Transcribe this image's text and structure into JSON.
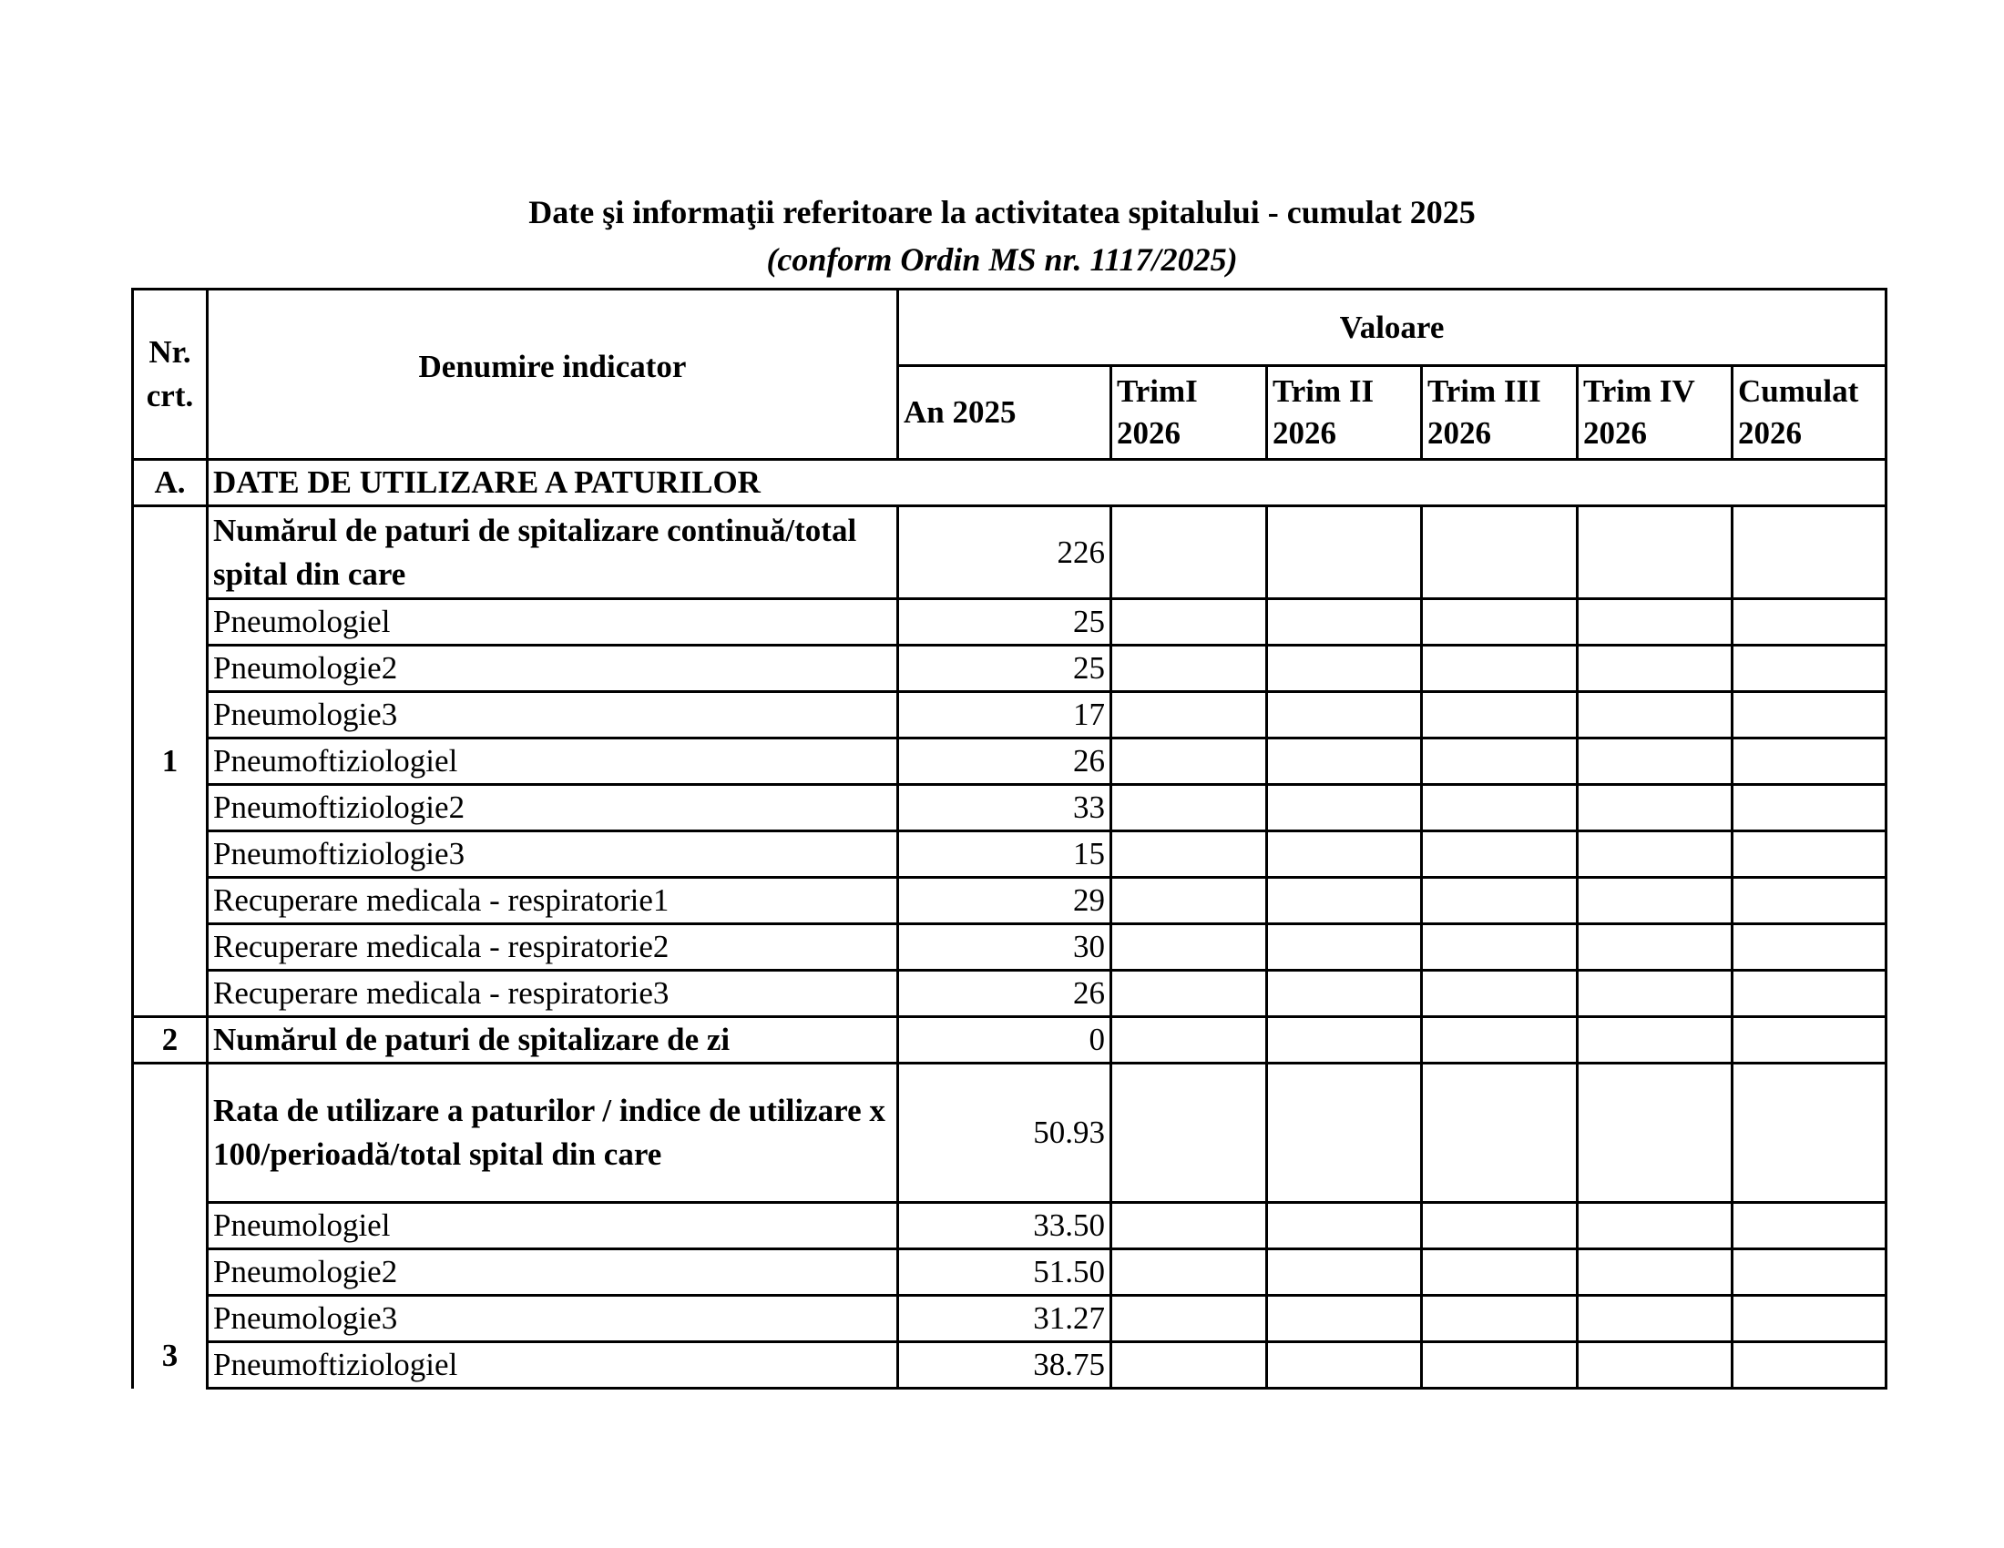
{
  "title": "Date şi informaţii referitoare la activitatea spitalului - cumulat 2025",
  "subtitle": "(conform Ordin MS nr. 1117/2025)",
  "header": {
    "nr": "Nr. crt.",
    "indicator": "Denumire indicator",
    "valoare": "Valoare",
    "columns": [
      "An 2025",
      "TrimI 2026",
      "Trim II 2026",
      "Trim III 2026",
      "Trim IV 2026",
      "Cumulat 2026"
    ]
  },
  "section": {
    "code": "A.",
    "label": "DATE DE UTILIZARE A PATURILOR"
  },
  "groups": [
    {
      "nr": "1",
      "rows": [
        {
          "label": "Numărul de paturi de spitalizare continuă/total spital din care",
          "value": "226",
          "bold": true
        },
        {
          "label": "Pneumologiel",
          "value": "25"
        },
        {
          "label": "Pneumologie2",
          "value": "25"
        },
        {
          "label": "Pneumologie3",
          "value": "17"
        },
        {
          "label": "Pneumoftiziologiel",
          "value": "26"
        },
        {
          "label": "Pneumoftiziologie2",
          "value": "33"
        },
        {
          "label": "Pneumoftiziologie3",
          "value": "15"
        },
        {
          "label": "Recuperare medicala - respiratorie1",
          "value": "29"
        },
        {
          "label": "Recuperare medicala - respiratorie2",
          "value": "30"
        },
        {
          "label": "Recuperare medicala - respiratorie3",
          "value": "26"
        }
      ]
    },
    {
      "nr": "2",
      "rows": [
        {
          "label": "Numărul de paturi de spitalizare de zi",
          "value": "0",
          "bold": true
        }
      ]
    },
    {
      "nr": "3",
      "rows": [
        {
          "label": "Rata de utilizare a paturilor / indice de utilizare x 100/perioadă/total spital din care",
          "value": "50.93",
          "bold": true
        },
        {
          "label": "Pneumologiel",
          "value": "33.50"
        },
        {
          "label": "Pneumologie2",
          "value": "51.50"
        },
        {
          "label": "Pneumologie3",
          "value": "31.27"
        },
        {
          "label": "Pneumoftiziologiel",
          "value": "38.75"
        }
      ]
    }
  ]
}
